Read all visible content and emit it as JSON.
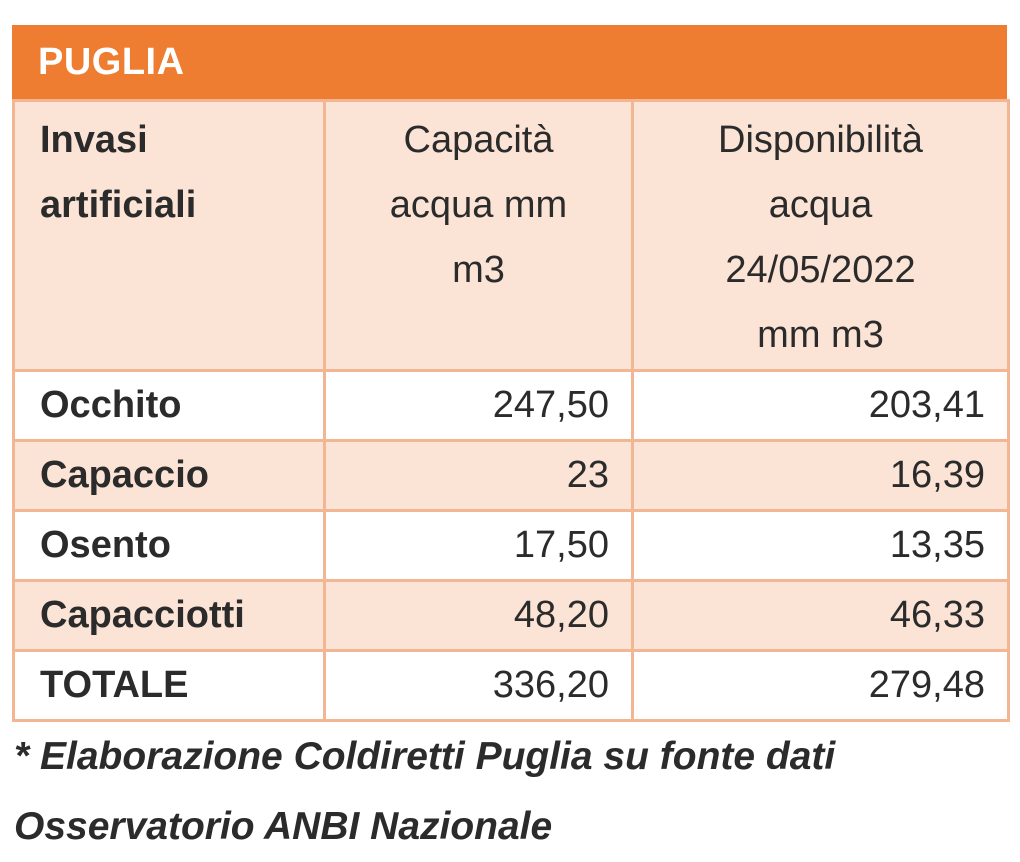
{
  "table": {
    "title": "PUGLIA",
    "headers": {
      "col1": [
        "Invasi",
        "artificiali"
      ],
      "col2": [
        "Capacità",
        "acqua mm",
        "m3"
      ],
      "col3": [
        "Disponibilità",
        "acqua",
        "24/05/2022",
        "mm m3"
      ]
    },
    "rows": [
      {
        "name": "Occhito",
        "capacity": "247,50",
        "availability": "203,41"
      },
      {
        "name": "Capaccio",
        "capacity": "23",
        "availability": "16,39"
      },
      {
        "name": "Osento",
        "capacity": "17,50",
        "availability": "13,35"
      },
      {
        "name": "Capacciotti",
        "capacity": "48,20",
        "availability": "46,33"
      },
      {
        "name": "TOTALE",
        "capacity": "336,20",
        "availability": "279,48"
      }
    ]
  },
  "footnote": {
    "line1": "* Elaborazione Coldiretti Puglia su fonte dati",
    "line2": "Osservatorio ANBI Nazionale"
  },
  "colors": {
    "title_bg": "#ee7d31",
    "header_bg": "#fbe4d6",
    "border": "#f3b692"
  }
}
